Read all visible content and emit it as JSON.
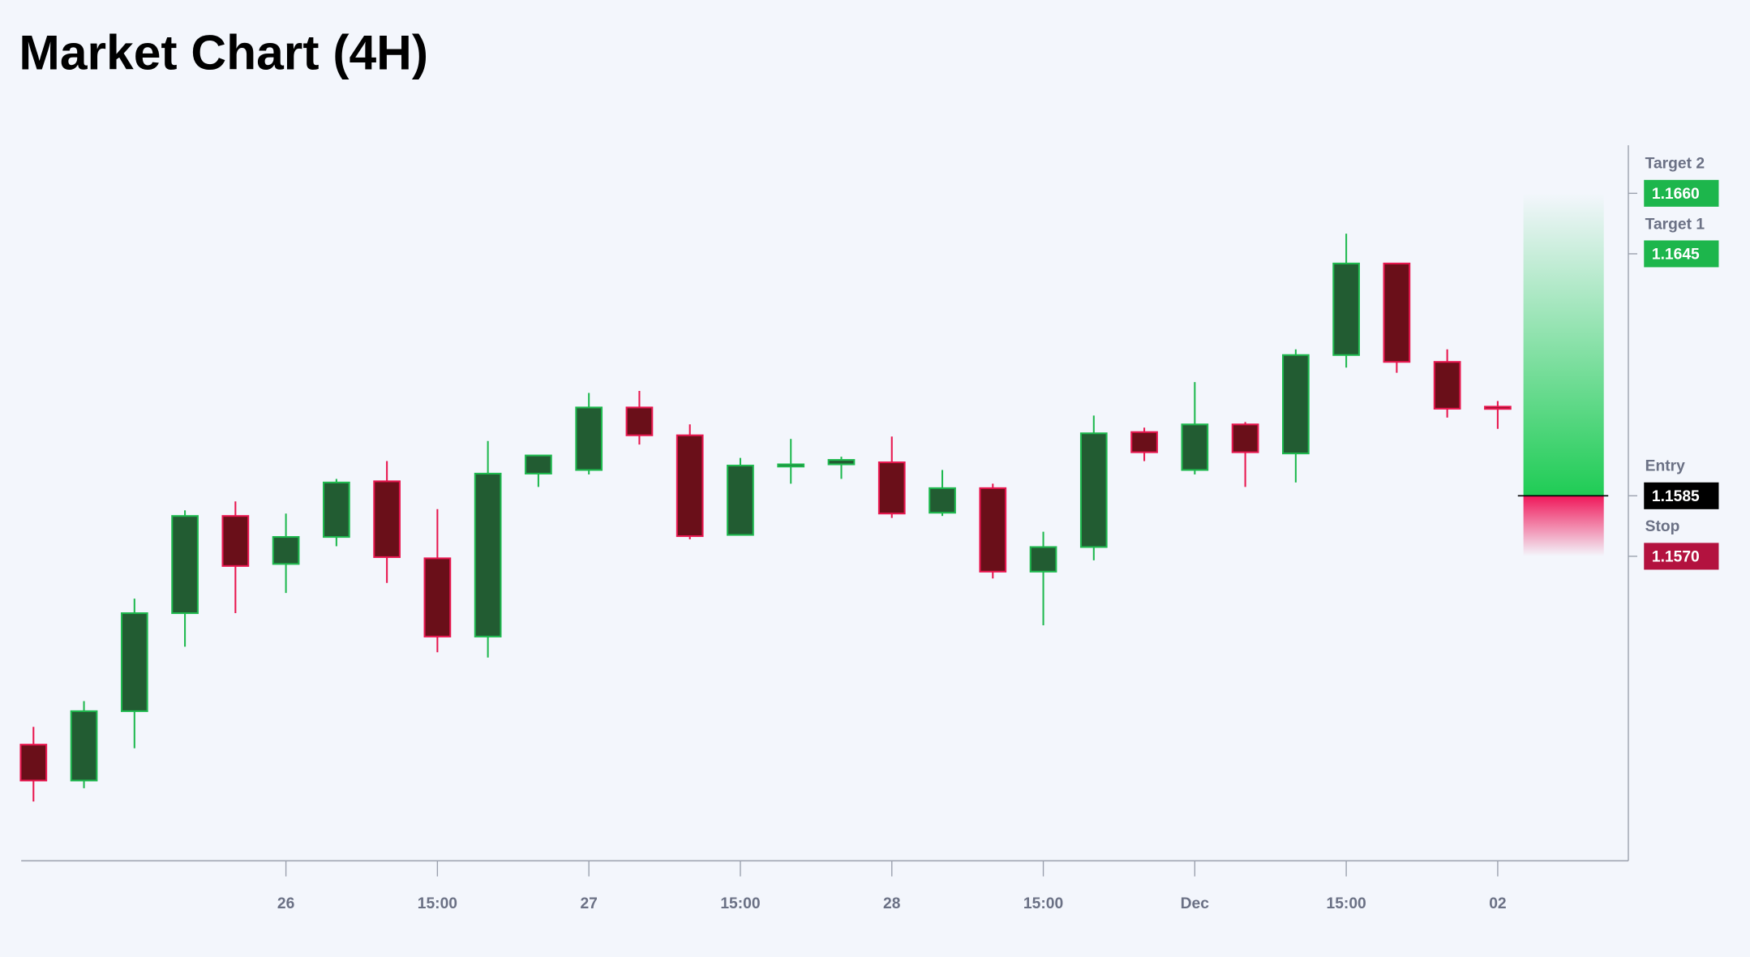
{
  "chart_data": {
    "type": "candlestick",
    "title": "Market Chart (4H)",
    "categories": [
      null,
      null,
      null,
      null,
      null,
      "26",
      null,
      null,
      "15:00",
      null,
      null,
      "27",
      null,
      null,
      "15:00",
      null,
      null,
      "28",
      null,
      null,
      "15:00",
      null,
      null,
      "Dec",
      null,
      null,
      "15:00",
      null,
      null,
      "02"
    ],
    "open": [
      1.15233,
      1.15144,
      1.15316,
      1.15559,
      1.158,
      1.15681,
      1.15748,
      1.15886,
      1.15695,
      1.15501,
      1.15905,
      1.15914,
      1.16069,
      1.16,
      1.15753,
      1.15925,
      1.15928,
      1.15933,
      1.15808,
      1.15869,
      1.15662,
      1.15723,
      1.16008,
      1.15914,
      1.16027,
      1.15955,
      1.16199,
      1.16426,
      1.16182,
      1.16071
    ],
    "high": [
      1.15277,
      1.15341,
      1.15595,
      1.15814,
      1.15836,
      1.15806,
      1.15892,
      1.15936,
      1.15817,
      1.15986,
      1.1595,
      1.16105,
      1.1611,
      1.16027,
      1.15944,
      1.15991,
      1.15947,
      1.15997,
      1.15914,
      1.1588,
      1.15761,
      1.16049,
      1.16019,
      1.16132,
      1.16033,
      1.16213,
      1.165,
      1.16426,
      1.16213,
      1.16085
    ],
    "low": [
      1.15092,
      1.15125,
      1.15224,
      1.15476,
      1.15559,
      1.15609,
      1.15725,
      1.15634,
      1.15462,
      1.15449,
      1.15872,
      1.15903,
      1.15977,
      1.15742,
      1.15753,
      1.1588,
      1.15892,
      1.15795,
      1.158,
      1.15645,
      1.15529,
      1.1569,
      1.15936,
      1.15903,
      1.15872,
      1.15883,
      1.16168,
      1.16155,
      1.16044,
      1.16016
    ],
    "close": [
      1.15144,
      1.15316,
      1.15559,
      1.158,
      1.15676,
      1.15748,
      1.15883,
      1.15698,
      1.15501,
      1.15905,
      1.1595,
      1.16069,
      1.16,
      1.1575,
      1.15925,
      1.15928,
      1.15939,
      1.15806,
      1.15869,
      1.15662,
      1.15723,
      1.16005,
      1.15958,
      1.16027,
      1.15958,
      1.16199,
      1.16426,
      1.16182,
      1.16066,
      1.16066
    ],
    "up_color": "#225c32",
    "up_edge": "#1fb94f",
    "down_color": "#6a0f19",
    "down_edge": "#e8174f",
    "ylim": [
      1.14945,
      1.16719
    ],
    "levels": [
      {
        "name": "Target 2",
        "value": 1.166,
        "label": "1.1660",
        "color": "#1db64c"
      },
      {
        "name": "Target 1",
        "value": 1.1645,
        "label": "1.1645",
        "color": "#1db64c"
      },
      {
        "name": "Entry",
        "value": 1.1585,
        "label": "1.1585",
        "color": "#000000"
      },
      {
        "name": "Stop",
        "value": 1.157,
        "label": "1.1570",
        "color": "#b3123f"
      }
    ]
  }
}
